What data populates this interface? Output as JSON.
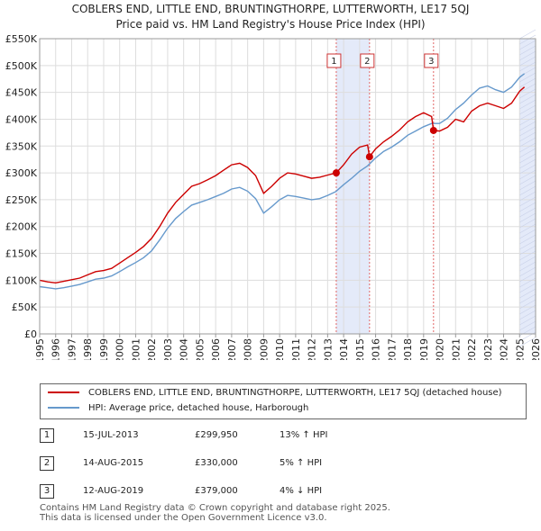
{
  "title_line1": "COBLERS END, LITTLE END, BRUNTINGTHORPE, LUTTERWORTH, LE17 5QJ",
  "title_line2": "Price paid vs. HM Land Registry's House Price Index (HPI)",
  "colors": {
    "property": "#cc0000",
    "hpi": "#6699cc",
    "shade": "#dde5f7",
    "marker_line": "#e06666"
  },
  "chart_data": {
    "type": "line",
    "title": "Price paid vs. HM Land Registry's House Price Index (HPI)",
    "xlabel": "",
    "ylabel": "",
    "xlim": [
      1995,
      2026
    ],
    "ylim": [
      0,
      550000
    ],
    "y_ticks": [
      0,
      50000,
      100000,
      150000,
      200000,
      250000,
      300000,
      350000,
      400000,
      450000,
      500000,
      550000
    ],
    "y_tick_labels": [
      "£0",
      "£50K",
      "£100K",
      "£150K",
      "£200K",
      "£250K",
      "£300K",
      "£350K",
      "£400K",
      "£450K",
      "£500K",
      "£550K"
    ],
    "x_ticks": [
      1995,
      1996,
      1997,
      1998,
      1999,
      2000,
      2001,
      2002,
      2003,
      2004,
      2005,
      2006,
      2007,
      2008,
      2009,
      2010,
      2011,
      2012,
      2013,
      2014,
      2015,
      2016,
      2017,
      2018,
      2019,
      2020,
      2021,
      2022,
      2023,
      2024,
      2025,
      2026
    ],
    "x_tick_labels": [
      "1995",
      "1996",
      "1997",
      "1998",
      "1999",
      "2000",
      "2001",
      "2002",
      "2003",
      "2004",
      "2005",
      "2006",
      "2007",
      "2008",
      "2009",
      "2010",
      "2011",
      "2012",
      "2013",
      "2014",
      "2015",
      "2016",
      "2017",
      "2018",
      "2019",
      "2020",
      "2021",
      "2022",
      "2023",
      "2024",
      "2025",
      "2026"
    ],
    "grid": true,
    "shaded_ranges": [
      [
        2013.54,
        2015.62
      ],
      [
        2025.0,
        2026.0
      ]
    ],
    "series": [
      {
        "name": "COBLERS END, LITTLE END, BRUNTINGTHORPE, LUTTERWORTH, LE17 5QJ (detached house)",
        "points": [
          [
            1995.0,
            100000
          ],
          [
            1995.5,
            97000
          ],
          [
            1996.0,
            95000
          ],
          [
            1996.5,
            98000
          ],
          [
            1997.0,
            101000
          ],
          [
            1997.5,
            104000
          ],
          [
            1998.0,
            110000
          ],
          [
            1998.5,
            116000
          ],
          [
            1999.0,
            118000
          ],
          [
            1999.5,
            122000
          ],
          [
            2000.0,
            132000
          ],
          [
            2000.5,
            142000
          ],
          [
            2001.0,
            152000
          ],
          [
            2001.5,
            163000
          ],
          [
            2002.0,
            178000
          ],
          [
            2002.5,
            200000
          ],
          [
            2003.0,
            225000
          ],
          [
            2003.5,
            245000
          ],
          [
            2004.0,
            260000
          ],
          [
            2004.5,
            275000
          ],
          [
            2005.0,
            280000
          ],
          [
            2005.5,
            287000
          ],
          [
            2006.0,
            295000
          ],
          [
            2006.5,
            305000
          ],
          [
            2007.0,
            315000
          ],
          [
            2007.5,
            318000
          ],
          [
            2008.0,
            310000
          ],
          [
            2008.5,
            295000
          ],
          [
            2009.0,
            262000
          ],
          [
            2009.5,
            275000
          ],
          [
            2010.0,
            290000
          ],
          [
            2010.5,
            300000
          ],
          [
            2011.0,
            298000
          ],
          [
            2011.5,
            294000
          ],
          [
            2012.0,
            290000
          ],
          [
            2012.5,
            292000
          ],
          [
            2013.0,
            296000
          ],
          [
            2013.54,
            299950
          ],
          [
            2014.0,
            315000
          ],
          [
            2014.5,
            335000
          ],
          [
            2015.0,
            348000
          ],
          [
            2015.5,
            352000
          ],
          [
            2015.62,
            330000
          ],
          [
            2016.0,
            345000
          ],
          [
            2016.5,
            358000
          ],
          [
            2017.0,
            368000
          ],
          [
            2017.5,
            380000
          ],
          [
            2018.0,
            395000
          ],
          [
            2018.5,
            405000
          ],
          [
            2019.0,
            412000
          ],
          [
            2019.5,
            405000
          ],
          [
            2019.62,
            379000
          ],
          [
            2020.0,
            378000
          ],
          [
            2020.5,
            385000
          ],
          [
            2021.0,
            400000
          ],
          [
            2021.5,
            395000
          ],
          [
            2022.0,
            415000
          ],
          [
            2022.5,
            425000
          ],
          [
            2023.0,
            430000
          ],
          [
            2023.5,
            425000
          ],
          [
            2024.0,
            420000
          ],
          [
            2024.5,
            430000
          ],
          [
            2025.0,
            452000
          ],
          [
            2025.3,
            460000
          ]
        ]
      },
      {
        "name": "HPI: Average price, detached house, Harborough",
        "points": [
          [
            1995.0,
            88000
          ],
          [
            1995.5,
            86000
          ],
          [
            1996.0,
            84000
          ],
          [
            1996.5,
            86000
          ],
          [
            1997.0,
            89000
          ],
          [
            1997.5,
            92000
          ],
          [
            1998.0,
            97000
          ],
          [
            1998.5,
            102000
          ],
          [
            1999.0,
            104000
          ],
          [
            1999.5,
            108000
          ],
          [
            2000.0,
            116000
          ],
          [
            2000.5,
            125000
          ],
          [
            2001.0,
            133000
          ],
          [
            2001.5,
            142000
          ],
          [
            2002.0,
            155000
          ],
          [
            2002.5,
            175000
          ],
          [
            2003.0,
            197000
          ],
          [
            2003.5,
            215000
          ],
          [
            2004.0,
            228000
          ],
          [
            2004.5,
            240000
          ],
          [
            2005.0,
            245000
          ],
          [
            2005.5,
            250000
          ],
          [
            2006.0,
            256000
          ],
          [
            2006.5,
            262000
          ],
          [
            2007.0,
            270000
          ],
          [
            2007.5,
            273000
          ],
          [
            2008.0,
            266000
          ],
          [
            2008.5,
            252000
          ],
          [
            2009.0,
            225000
          ],
          [
            2009.5,
            237000
          ],
          [
            2010.0,
            250000
          ],
          [
            2010.5,
            258000
          ],
          [
            2011.0,
            256000
          ],
          [
            2011.5,
            253000
          ],
          [
            2012.0,
            250000
          ],
          [
            2012.5,
            252000
          ],
          [
            2013.0,
            258000
          ],
          [
            2013.5,
            265000
          ],
          [
            2014.0,
            278000
          ],
          [
            2014.5,
            290000
          ],
          [
            2015.0,
            303000
          ],
          [
            2015.5,
            313000
          ],
          [
            2016.0,
            328000
          ],
          [
            2016.5,
            340000
          ],
          [
            2017.0,
            348000
          ],
          [
            2017.5,
            358000
          ],
          [
            2018.0,
            370000
          ],
          [
            2018.5,
            378000
          ],
          [
            2019.0,
            386000
          ],
          [
            2019.5,
            392000
          ],
          [
            2020.0,
            392000
          ],
          [
            2020.5,
            402000
          ],
          [
            2021.0,
            418000
          ],
          [
            2021.5,
            430000
          ],
          [
            2022.0,
            445000
          ],
          [
            2022.5,
            458000
          ],
          [
            2023.0,
            462000
          ],
          [
            2023.5,
            455000
          ],
          [
            2024.0,
            450000
          ],
          [
            2024.5,
            460000
          ],
          [
            2025.0,
            478000
          ],
          [
            2025.3,
            485000
          ]
        ]
      }
    ],
    "sale_markers": [
      {
        "label": "1",
        "x": 2013.54,
        "y": 299950
      },
      {
        "label": "2",
        "x": 2015.62,
        "y": 330000
      },
      {
        "label": "3",
        "x": 2019.62,
        "y": 379000
      }
    ]
  },
  "legend": {
    "property": "COBLERS END, LITTLE END, BRUNTINGTHORPE, LUTTERWORTH, LE17 5QJ (detached house)",
    "hpi": "HPI: Average price, detached house, Harborough"
  },
  "sales": [
    {
      "num": "1",
      "date": "15-JUL-2013",
      "price": "£299,950",
      "hpi": "13% ↑ HPI"
    },
    {
      "num": "2",
      "date": "14-AUG-2015",
      "price": "£330,000",
      "hpi": "5% ↑ HPI"
    },
    {
      "num": "3",
      "date": "12-AUG-2019",
      "price": "£379,000",
      "hpi": "4% ↓ HPI"
    }
  ],
  "footer": {
    "line1": "Contains HM Land Registry data © Crown copyright and database right 2025.",
    "line2": "This data is licensed under the Open Government Licence v3.0."
  }
}
